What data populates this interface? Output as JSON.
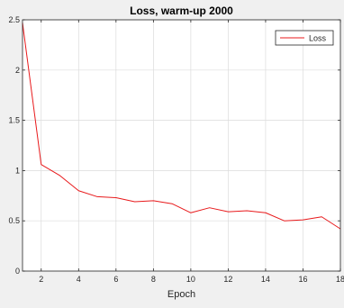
{
  "chart_data": {
    "type": "line",
    "title": "Loss, warm-up 2000",
    "xlabel": "Epoch",
    "ylabel": "",
    "xlim": [
      1,
      18
    ],
    "ylim": [
      0,
      2.5
    ],
    "xticks": [
      2,
      4,
      6,
      8,
      10,
      12,
      14,
      16,
      18
    ],
    "xtick_labels": [
      "2",
      "4",
      "6",
      "8",
      "10",
      "12",
      "14",
      "16",
      "18"
    ],
    "yticks": [
      0,
      0.5,
      1,
      1.5,
      2,
      2.5
    ],
    "ytick_labels": [
      "0",
      "0.5",
      "1",
      "1.5",
      "2",
      "2.5"
    ],
    "grid": true,
    "legend_position": "top-right",
    "series": [
      {
        "name": "Loss",
        "color": "#e8191b",
        "x": [
          1,
          2,
          3,
          4,
          5,
          6,
          7,
          8,
          9,
          10,
          11,
          12,
          13,
          14,
          15,
          16,
          17,
          18
        ],
        "y": [
          2.47,
          1.06,
          0.95,
          0.8,
          0.74,
          0.73,
          0.69,
          0.7,
          0.67,
          0.58,
          0.63,
          0.59,
          0.6,
          0.58,
          0.5,
          0.51,
          0.54,
          0.42
        ]
      }
    ]
  }
}
